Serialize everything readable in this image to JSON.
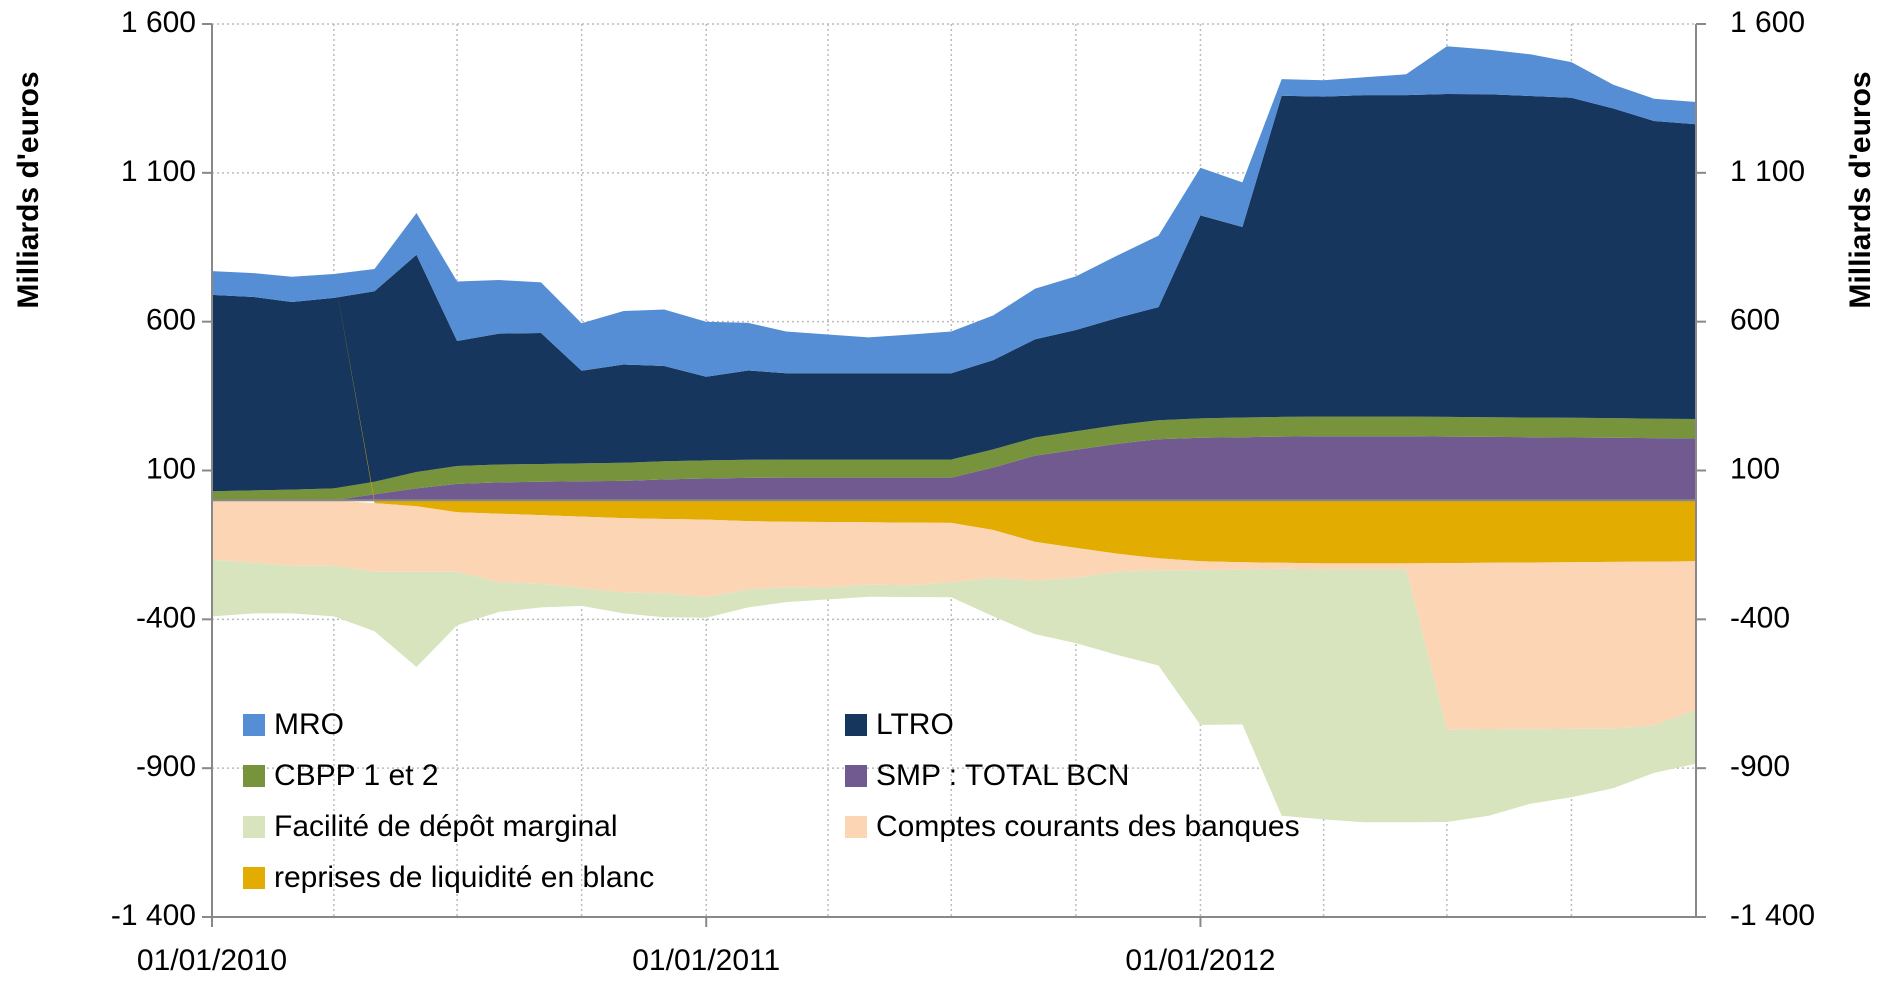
{
  "chart_data": {
    "type": "stacked_area",
    "ylabel": "Milliards d'euros",
    "y2label": "Milliards d'euros",
    "x": [
      "01/01/2010",
      "01/02/2010",
      "01/03/2010",
      "01/04/2010",
      "01/05/2010",
      "01/06/2010",
      "01/07/2010",
      "01/08/2010",
      "01/09/2010",
      "01/10/2010",
      "01/11/2010",
      "01/12/2010",
      "01/01/2011",
      "01/02/2011",
      "01/03/2011",
      "01/04/2011",
      "01/05/2011",
      "01/06/2011",
      "01/07/2011",
      "01/08/2011",
      "01/09/2011",
      "01/10/2011",
      "01/11/2011",
      "01/12/2011",
      "01/01/2012",
      "01/02/2012",
      "01/03/2012",
      "01/04/2012",
      "01/05/2012",
      "01/06/2012",
      "01/07/2012",
      "01/08/2012",
      "01/09/2012",
      "01/10/2012",
      "01/11/2012",
      "01/12/2012",
      "01/01/2013"
    ],
    "xlim": [
      "01/01/2010",
      "01/01/2013"
    ],
    "xticks": [
      "01/01/2010",
      "01/01/2011",
      "01/01/2012"
    ],
    "xgrid": [
      "01/04/2010",
      "01/07/2010",
      "01/10/2010",
      "01/01/2011",
      "01/04/2011",
      "01/07/2011",
      "01/10/2011",
      "01/01/2012",
      "01/04/2012",
      "01/07/2012",
      "01/10/2012"
    ],
    "ylim": [
      -1400,
      1600
    ],
    "yticks": [
      {
        "value": 1600,
        "label": "1 600"
      },
      {
        "value": 1100,
        "label": "1 100"
      },
      600,
      100,
      -400,
      -900,
      {
        "value": -1400,
        "label": "-1 400"
      }
    ],
    "y2lim": [
      -1400,
      1600
    ],
    "y2ticks": [
      {
        "value": 1600,
        "label": "1 600"
      },
      {
        "value": 1100,
        "label": "1 100"
      },
      600,
      100,
      -400,
      -900,
      {
        "value": -1400,
        "label": "-1 400"
      }
    ],
    "legend": "lower left",
    "series": [
      {
        "name": "MRO",
        "color": "#558ed5",
        "values": [
          80,
          80,
          85,
          80,
          75,
          140,
          200,
          180,
          170,
          160,
          180,
          190,
          185,
          160,
          140,
          130,
          120,
          130,
          140,
          150,
          170,
          180,
          210,
          240,
          160,
          150,
          56,
          55,
          60,
          70,
          160,
          150,
          140,
          120,
          80,
          75,
          75
        ]
      },
      {
        "name": "LTRO",
        "color": "#17365d",
        "values": [
          660,
          650,
          630,
          640,
          640,
          730,
          420,
          440,
          440,
          311,
          330,
          320,
          281,
          300,
          290,
          290,
          290,
          290,
          290,
          300,
          330,
          340,
          360,
          380,
          682,
          640,
          1079,
          1075,
          1080,
          1080,
          1085,
          1085,
          1080,
          1075,
          1040,
          1000,
          990
        ]
      },
      {
        "name": "CBPP 1 et 2",
        "color": "#77933c",
        "values": [
          30,
          33,
          36,
          40,
          42,
          55,
          60,
          60,
          60,
          60,
          61,
          61,
          61,
          61,
          61,
          61,
          61,
          61,
          61,
          61,
          61,
          62,
          63,
          64,
          65,
          66,
          66,
          66,
          66,
          66,
          66,
          66,
          66,
          66,
          66,
          65,
          65
        ]
      },
      {
        "name": "SMP : TOTAL  BCN",
        "color": "#705a90",
        "values": [
          0,
          0,
          0,
          0,
          20,
          40,
          55,
          60,
          62,
          64,
          65,
          70,
          73,
          75,
          76,
          76,
          76,
          76,
          76,
          110,
          150,
          170,
          190,
          205,
          210,
          212,
          214,
          215,
          215,
          215,
          214,
          213,
          212,
          211,
          210,
          209,
          208
        ]
      },
      {
        "name": "Facilité de dépôt marginal",
        "color": "#d7e4bd",
        "values": [
          -190,
          -170,
          -160,
          -170,
          -200,
          -320,
          -180,
          -100,
          -80,
          -60,
          -70,
          -80,
          -70,
          -60,
          -50,
          -40,
          -40,
          -40,
          -50,
          -130,
          -180,
          -220,
          -280,
          -320,
          -520,
          -520,
          -830,
          -840,
          -850,
          -850,
          -310,
          -290,
          -250,
          -230,
          -200,
          -160,
          -180
        ]
      },
      {
        "name": "Comptes courants des banques",
        "color": "#fcd5b5",
        "values": [
          -200,
          -210,
          -220,
          -220,
          -230,
          -220,
          -200,
          -230,
          -230,
          -240,
          -250,
          -250,
          -260,
          -230,
          -220,
          -220,
          -210,
          -210,
          -200,
          -160,
          -130,
          -100,
          -60,
          -40,
          -30,
          -25,
          -20,
          -20,
          -20,
          -20,
          -560,
          -560,
          -560,
          -560,
          -560,
          -550,
          -500
        ]
      },
      {
        "name": "reprises de liquidité en blanc",
        "color": "#e2ac00",
        "values": [
          0,
          0,
          0,
          0,
          -10,
          -20,
          -40,
          -45,
          -50,
          -55,
          -60,
          -63,
          -65,
          -70,
          -72,
          -73,
          -74,
          -75,
          -76,
          -100,
          -140,
          -160,
          -180,
          -195,
          -205,
          -208,
          -210,
          -212,
          -212,
          -212,
          -211,
          -210,
          -209,
          -208,
          -207,
          -206,
          -205
        ]
      }
    ]
  }
}
